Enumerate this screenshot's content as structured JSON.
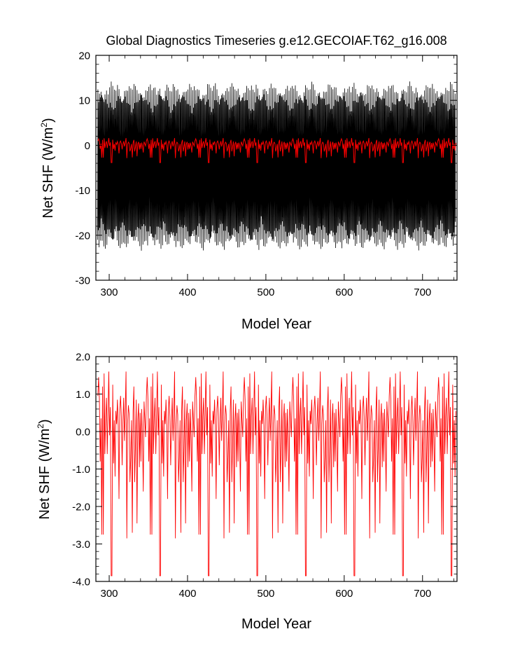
{
  "title": "Global Diagnostics Timeseries g.e12.GECOIAF.T62_g16.008",
  "colors": {
    "monthly": "#000000",
    "annual": "#ff0000",
    "frame": "#000000",
    "background": "#ffffff"
  },
  "chart_data": [
    {
      "type": "line",
      "title": "Global Diagnostics Timeseries g.e12.GECOIAF.T62_g16.008",
      "xlabel": "Model Year",
      "ylabel_main": "Net SHF (W/m",
      "ylabel_sup": "2",
      "ylabel_close": ")",
      "xlim": [
        283,
        744
      ],
      "ylim": [
        -30,
        20
      ],
      "xticks": [
        300,
        400,
        500,
        600,
        700
      ],
      "xtick_labels": [
        "300",
        "400",
        "500",
        "600",
        "700"
      ],
      "yticks": [
        -30,
        -20,
        -10,
        0,
        10,
        20
      ],
      "ytick_labels": [
        "-30",
        "-20",
        "-10",
        "0",
        "10",
        "20"
      ],
      "grid": false,
      "legend": "none",
      "series": [
        {
          "color": "#000000",
          "style": "monthly oscillation envelope",
          "x_range": [
            285,
            742
          ],
          "cycle_years": 62,
          "upper_envelope": [
            [
              0,
              13.5
            ],
            [
              2,
              12.5
            ],
            [
              5,
              14.0
            ],
            [
              8,
              12.0
            ],
            [
              11,
              13.5
            ],
            [
              14,
              11.5
            ],
            [
              17,
              14.5
            ],
            [
              20,
              13.0
            ],
            [
              23,
              12.0
            ],
            [
              26,
              14.5
            ],
            [
              29,
              13.0
            ],
            [
              32,
              11.5
            ],
            [
              35,
              14.0
            ],
            [
              38,
              12.5
            ],
            [
              41,
              13.5
            ],
            [
              44,
              12.0
            ],
            [
              47,
              14.0
            ],
            [
              50,
              13.0
            ],
            [
              53,
              12.5
            ],
            [
              56,
              14.0
            ],
            [
              59,
              12.0
            ],
            [
              62,
              13.5
            ]
          ],
          "lower_envelope": [
            [
              0,
              -21.5
            ],
            [
              2,
              -23.0
            ],
            [
              5,
              -20.5
            ],
            [
              8,
              -22.5
            ],
            [
              11,
              -23.5
            ],
            [
              14,
              -21.0
            ],
            [
              17,
              -22.0
            ],
            [
              20,
              -23.5
            ],
            [
              23,
              -20.0
            ],
            [
              26,
              -22.5
            ],
            [
              29,
              -23.0
            ],
            [
              32,
              -21.5
            ],
            [
              35,
              -22.0
            ],
            [
              38,
              -23.5
            ],
            [
              41,
              -21.0
            ],
            [
              44,
              -22.5
            ],
            [
              47,
              -23.0
            ],
            [
              50,
              -21.0
            ],
            [
              53,
              -22.0
            ],
            [
              56,
              -23.5
            ],
            [
              59,
              -21.5
            ],
            [
              62,
              -21.5
            ]
          ]
        },
        {
          "color": "#ff0000",
          "style": "annual mean (same as lower panel)",
          "x_range": [
            285,
            742
          ]
        }
      ]
    },
    {
      "type": "line",
      "xlabel": "Model Year",
      "ylabel_main": "Net SHF (W/m",
      "ylabel_sup": "2",
      "ylabel_close": ")",
      "xlim": [
        283,
        744
      ],
      "ylim": [
        -4.0,
        2.0
      ],
      "xticks": [
        300,
        400,
        500,
        600,
        700
      ],
      "xtick_labels": [
        "300",
        "400",
        "500",
        "600",
        "700"
      ],
      "yticks": [
        -4.0,
        -3.0,
        -2.0,
        -1.0,
        0.0,
        1.0,
        2.0
      ],
      "ytick_labels": [
        "-4.0",
        "-3.0",
        "-2.0",
        "-1.0",
        "0.0",
        "1.0",
        "2.0"
      ],
      "reference_line": 0.0,
      "grid": false,
      "legend": "none",
      "series": [
        {
          "color": "#ff0000",
          "style": "annual mean",
          "x_range": [
            285,
            742
          ],
          "cycle_years": 62,
          "cycle_values": [
            0.95,
            1.45,
            0.85,
            1.05,
            0.35,
            -2.75,
            1.2,
            0.25,
            1.55,
            -0.6,
            0.4,
            0.9,
            0.1,
            0.45,
            1.6,
            -0.1,
            0.65,
            -3.85,
            0.5,
            1.25,
            -0.85,
            0.3,
            0.75,
            0.55,
            0.2,
            0.85,
            0.15,
            -0.55,
            0.6,
            0.95,
            0.4,
            -0.35,
            0.25,
            0.9,
            -0.25,
            0.55,
            1.6,
            -0.5,
            0.2,
            0.7,
            0.45,
            -1.35,
            0.85,
            0.3,
            -2.7,
            0.55,
            1.2,
            0.35,
            -0.4,
            0.85,
            1.35,
            0.3,
            0.75,
            -0.95,
            0.5,
            0.25,
            0.6,
            -0.2,
            0.45,
            0.8,
            0.3,
            -0.15
          ],
          "dip_pattern": [
            [
              3,
              -0.8
            ],
            [
              7,
              -2.75
            ],
            [
              12,
              -0.6
            ],
            [
              18,
              -3.85
            ],
            [
              22,
              -1.2
            ],
            [
              27,
              -1.8
            ],
            [
              31,
              -0.9
            ],
            [
              37,
              -2.85
            ],
            [
              42,
              -0.7
            ],
            [
              47,
              -1.35
            ],
            [
              50,
              -2.45
            ],
            [
              55,
              -0.8
            ],
            [
              58,
              -1.6
            ]
          ]
        }
      ]
    }
  ]
}
